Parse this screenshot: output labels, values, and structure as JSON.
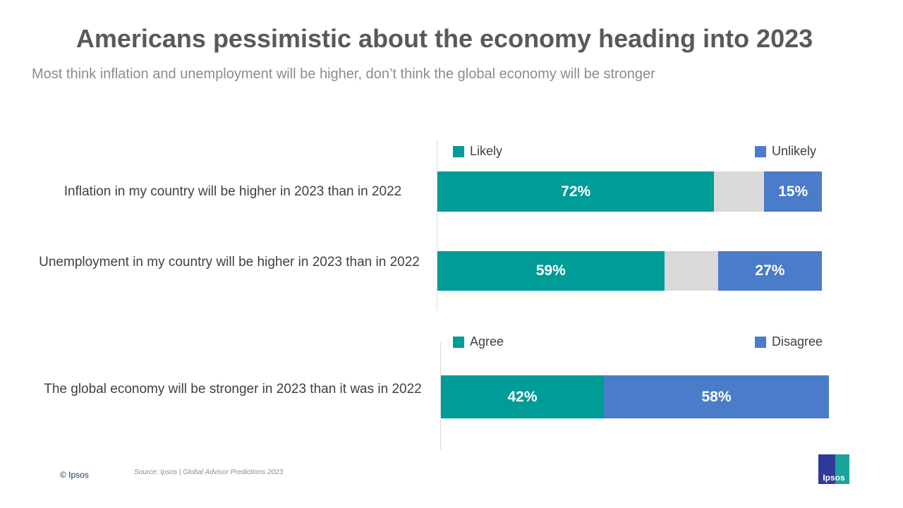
{
  "title": "Americans pessimistic about the economy heading into 2023",
  "subtitle": "Most think inflation and unemployment will be higher, don’t think the global economy will be stronger",
  "footer": {
    "copyright": "© Ipsos",
    "source": "Source: Ipsos | Global Advisor Predictions 2023",
    "logo_text": "Ipsos"
  },
  "chart_data": [
    {
      "type": "bar",
      "orientation": "horizontal-stacked",
      "categories": [
        "Inflation in my country will be higher in 2023 than in 2022",
        "Unemployment in my country will be higher in 2023 than in 2022"
      ],
      "legend": [
        "Likely",
        "Unlikely"
      ],
      "series": [
        {
          "name": "Likely",
          "values": [
            72,
            59
          ],
          "labels": [
            "72%",
            "59%"
          ],
          "color": "#009C98"
        },
        {
          "values": [
            13,
            14
          ],
          "color": "#D9D9D9"
        },
        {
          "name": "Unlikely",
          "values": [
            15,
            27
          ],
          "labels": [
            "15%",
            "27%"
          ],
          "color": "#4A7CC9"
        }
      ],
      "xlim": [
        0,
        100
      ]
    },
    {
      "type": "bar",
      "orientation": "horizontal-stacked",
      "categories": [
        "The global economy will be stronger in 2023 than it was in 2022"
      ],
      "legend": [
        "Agree",
        "Disagree"
      ],
      "series": [
        {
          "name": "Agree",
          "values": [
            42
          ],
          "labels": [
            "42%"
          ],
          "color": "#009C98"
        },
        {
          "name": "Disagree",
          "values": [
            58
          ],
          "labels": [
            "58%"
          ],
          "color": "#4A7CC9"
        }
      ],
      "xlim": [
        0,
        100
      ]
    }
  ]
}
